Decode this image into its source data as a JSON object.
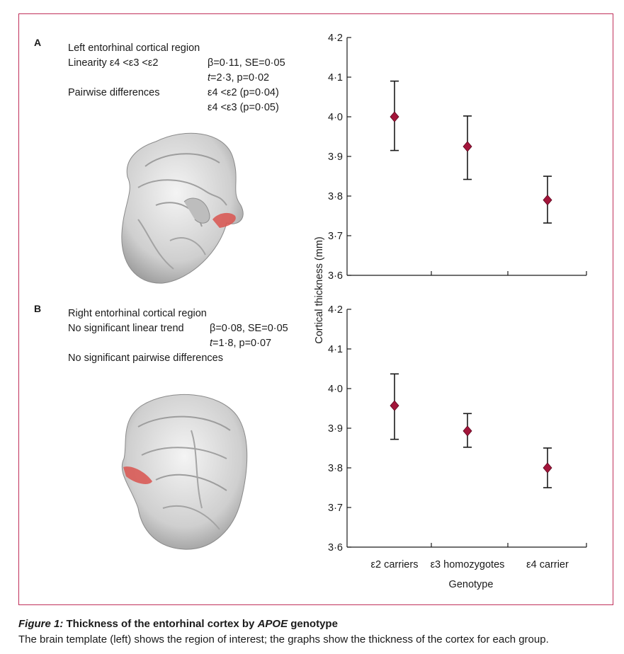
{
  "panels": {
    "a": {
      "letter": "A",
      "region": "Left entorhinal cortical region",
      "linearity_label": "Linearity ε4 <ε3 <ε2",
      "beta": "β=0·11, SE=0·05",
      "t_var": "t",
      "t_stat": "=2·3, p=0·02",
      "pairwise_label": "Pairwise differences",
      "pair1": "ε4 <ε2 (p=0·04)",
      "pair2": "ε4 <ε3 (p=0·05)"
    },
    "b": {
      "letter": "B",
      "region": "Right entorhinal cortical region",
      "trend_label": "No significant linear trend",
      "beta": "β=0·08, SE=0·05",
      "t_var": "t",
      "t_stat": "=1·8, p=0·07",
      "pairwise_label": "No significant pairwise differences"
    }
  },
  "chart_data": [
    {
      "type": "scatter",
      "panel": "A",
      "categories": [
        "ε2 carriers",
        "ε3 homozygotes",
        "ε4 carrier"
      ],
      "values": [
        4.0,
        3.925,
        3.79
      ],
      "error_low": [
        3.915,
        3.842,
        3.732
      ],
      "error_high": [
        4.09,
        4.002,
        3.85
      ],
      "ylim": [
        3.6,
        4.2
      ],
      "yticks": [
        "3·6",
        "3·7",
        "3·8",
        "3·9",
        "4·0",
        "4·1",
        "4·2"
      ]
    },
    {
      "type": "scatter",
      "panel": "B",
      "categories": [
        "ε2 carriers",
        "ε3 homozygotes",
        "ε4 carrier"
      ],
      "values": [
        3.957,
        3.893,
        3.8
      ],
      "error_low": [
        3.872,
        3.852,
        3.75
      ],
      "error_high": [
        4.037,
        3.937,
        3.85
      ],
      "ylim": [
        3.6,
        4.2
      ],
      "yticks": [
        "3·6",
        "3·7",
        "3·8",
        "3·9",
        "4·0",
        "4·1",
        "4·2"
      ],
      "xlabel": "Genotype"
    }
  ],
  "axes": {
    "ylabel": "Cortical thickness (mm)"
  },
  "colors": {
    "frame": "#c0305a",
    "marker": "#a3153a",
    "highlight": "#d9534f"
  },
  "caption": {
    "fig": "Figure 1:",
    "title_pre": " Thickness of the entorhinal cortex by ",
    "title_gene": "APOE",
    "title_post": " genotype",
    "body": "The brain template (left) shows the region of interest; the graphs show the thickness of the cortex for each group."
  }
}
